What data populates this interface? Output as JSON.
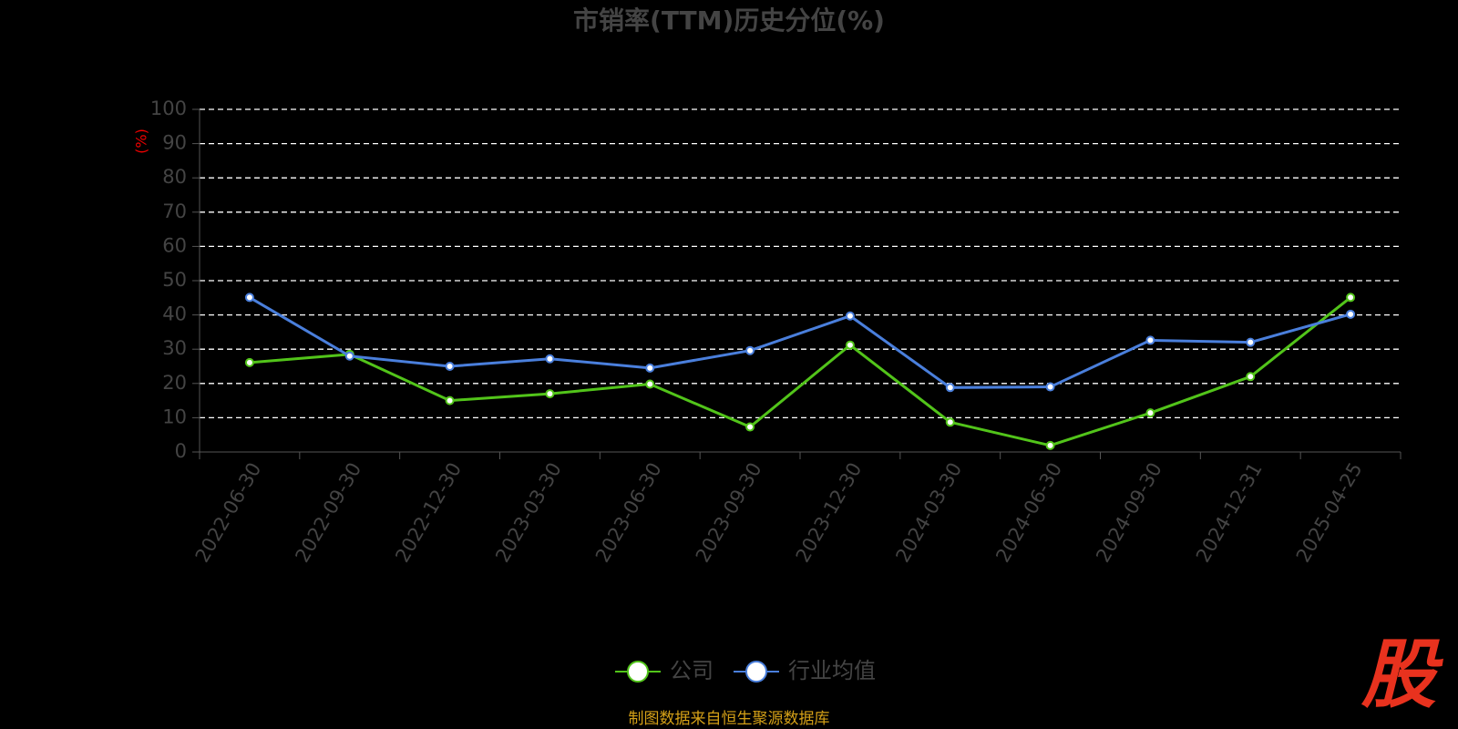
{
  "chart_data": {
    "type": "line",
    "title": "市销率(TTM)历史分位(%)",
    "y_label": "(%)",
    "categories": [
      "2022-06-30",
      "2022-09-30",
      "2022-12-30",
      "2023-03-30",
      "2023-06-30",
      "2023-09-30",
      "2023-12-30",
      "2024-03-30",
      "2024-06-30",
      "2024-09-30",
      "2024-12-31",
      "2025-04-25"
    ],
    "series": [
      {
        "name": "公司",
        "color": "#52c41a",
        "values": [
          26.1,
          28.5,
          15,
          17,
          19.8,
          7.3,
          31.2,
          8.7,
          1.9,
          11.4,
          22,
          45.1
        ]
      },
      {
        "name": "行业均值",
        "color": "#4a7fdc",
        "values": [
          45.1,
          28,
          25,
          27.2,
          24.5,
          29.6,
          39.7,
          18.8,
          19,
          32.6,
          32,
          40.2
        ]
      }
    ],
    "ylim": [
      0,
      100
    ],
    "yticks": [
      0,
      10,
      20,
      30,
      40,
      50,
      60,
      70,
      80,
      90,
      100
    ],
    "grid": true,
    "legend": "bottom",
    "source": "制图数据来自恒生聚源数据库",
    "logo": "股"
  }
}
